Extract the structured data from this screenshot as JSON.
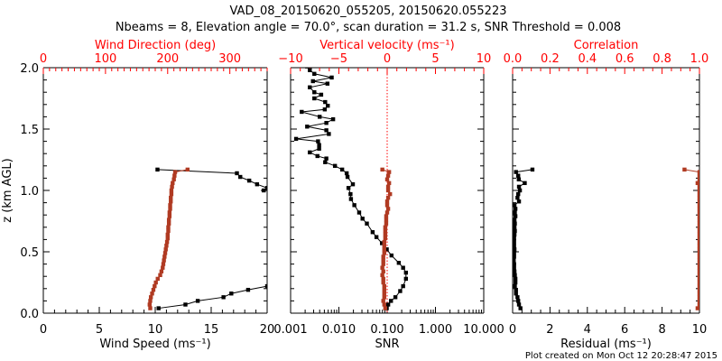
{
  "title_line1": "VAD_08_20150620_055205, 20150620.055223",
  "title_line2": "Nbeams = 8, Elevation angle = 70.0°, scan duration = 31.2 s, SNR Threshold = 0.008",
  "footer": "Plot created on Mon Oct 12 20:28:47 2015",
  "colors": {
    "axis": "#000000",
    "secondary_axis": "#ff0000",
    "secondary_series": "#b03a22",
    "primary_series": "#000000"
  },
  "chart_data": [
    {
      "type": "line",
      "panel": "wind",
      "ylabel": "z (km AGL)",
      "ylim": [
        0,
        2
      ],
      "yticks": [
        "0.0",
        "0.5",
        "1.0",
        "1.5",
        "2.0"
      ],
      "xlabel": "Wind Speed (ms⁻¹)",
      "xlim": [
        0,
        20
      ],
      "xticks": [
        "0",
        "5",
        "10",
        "15",
        "20"
      ],
      "x2label": "Wind Direction (deg)",
      "x2lim": [
        0,
        360
      ],
      "x2ticks": [
        "0",
        "100",
        "200",
        "300"
      ],
      "series": [
        {
          "name": "Wind Speed (lower)",
          "axis": "bottom",
          "z": [
            0.04,
            0.07,
            0.1,
            0.13,
            0.16,
            0.19,
            0.22
          ],
          "values": [
            10.3,
            12.7,
            13.8,
            16.1,
            16.8,
            18.3,
            20.0
          ]
        },
        {
          "name": "Wind Speed (upper)",
          "axis": "bottom",
          "z": [
            1.17,
            1.14,
            1.11,
            1.08,
            1.05,
            1.02,
            1.0
          ],
          "values": [
            10.2,
            17.3,
            17.6,
            18.4,
            19.1,
            20.0,
            19.7
          ]
        },
        {
          "name": "Wind Direction",
          "axis": "top",
          "z": [
            1.17,
            1.15,
            1.12,
            1.09,
            1.06,
            1.03,
            1.0,
            0.97,
            0.94,
            0.91,
            0.88,
            0.85,
            0.82,
            0.79,
            0.76,
            0.73,
            0.7,
            0.67,
            0.64,
            0.61,
            0.58,
            0.55,
            0.52,
            0.49,
            0.46,
            0.43,
            0.4,
            0.37,
            0.34,
            0.31,
            0.28,
            0.25,
            0.22,
            0.19,
            0.16,
            0.13,
            0.1,
            0.07,
            0.04
          ],
          "values": [
            232,
            212,
            211,
            210,
            208,
            207,
            206,
            206,
            205,
            205,
            204,
            204,
            203,
            203,
            202,
            202,
            201,
            201,
            200,
            200,
            199,
            198,
            197,
            196,
            195,
            194,
            193,
            192,
            190,
            188,
            184,
            181,
            179,
            177,
            175,
            173,
            172,
            171,
            172
          ]
        }
      ]
    },
    {
      "type": "line",
      "panel": "snr",
      "ylim": [
        0,
        2
      ],
      "xlabel": "SNR",
      "xscale": "log",
      "xlim": [
        0.001,
        10
      ],
      "xticks": [
        "0.001",
        "0.010",
        "0.100",
        "1.000",
        "10.000"
      ],
      "x2label": "Vertical velocity (ms⁻¹)",
      "x2lim": [
        -10,
        10
      ],
      "x2ticks": [
        "−10",
        "−5",
        "0",
        "5",
        "10"
      ],
      "series": [
        {
          "name": "SNR",
          "axis": "bottom",
          "z": [
            2.01,
            1.98,
            1.95,
            1.92,
            1.89,
            1.87,
            1.84,
            1.8,
            1.78,
            1.75,
            1.72,
            1.69,
            1.66,
            1.64,
            1.6,
            1.58,
            1.55,
            1.52,
            1.49,
            1.46,
            1.42,
            1.4,
            1.37,
            1.34,
            1.31,
            1.28,
            1.26,
            1.23,
            1.2,
            1.17,
            1.14,
            1.11,
            1.05,
            1.02,
            0.97,
            0.93,
            0.88,
            0.82,
            0.77,
            0.73,
            0.66,
            0.62,
            0.57,
            0.52,
            0.47,
            0.41,
            0.37,
            0.33,
            0.28,
            0.22,
            0.18,
            0.13,
            0.1,
            0.07,
            0.04
          ],
          "values": [
            0.0022,
            0.0025,
            0.0031,
            0.0071,
            0.0029,
            0.0058,
            0.0025,
            0.0031,
            0.0043,
            0.0031,
            0.0052,
            0.0059,
            0.0051,
            0.0017,
            0.004,
            0.0076,
            0.0055,
            0.0022,
            0.0055,
            0.0062,
            0.0013,
            0.0037,
            0.0039,
            0.0039,
            0.0025,
            0.0036,
            0.0055,
            0.0052,
            0.0083,
            0.0117,
            0.0145,
            0.0151,
            0.0195,
            0.0158,
            0.0174,
            0.0178,
            0.0209,
            0.0263,
            0.0309,
            0.038,
            0.05,
            0.06,
            0.078,
            0.098,
            0.123,
            0.174,
            0.214,
            0.245,
            0.245,
            0.214,
            0.186,
            0.148,
            0.12,
            0.105,
            0.098
          ]
        },
        {
          "name": "Vertical velocity",
          "axis": "top",
          "z": [
            1.17,
            1.15,
            1.12,
            1.09,
            1.06,
            1.03,
            1.0,
            0.97,
            0.94,
            0.91,
            0.88,
            0.85,
            0.82,
            0.79,
            0.76,
            0.73,
            0.7,
            0.67,
            0.64,
            0.61,
            0.58,
            0.55,
            0.52,
            0.49,
            0.46,
            0.43,
            0.4,
            0.37,
            0.34,
            0.31,
            0.28,
            0.25,
            0.22,
            0.19,
            0.16,
            0.13,
            0.1,
            0.07,
            0.04
          ],
          "values": [
            -0.5,
            0.2,
            0.1,
            0.0,
            0.2,
            0.1,
            0.1,
            0.3,
            0.1,
            0.0,
            0.0,
            0.1,
            0.0,
            -0.1,
            -0.1,
            -0.1,
            -0.2,
            -0.2,
            -0.2,
            -0.2,
            -0.3,
            -0.3,
            -0.3,
            -0.3,
            -0.4,
            -0.4,
            -0.4,
            -0.5,
            -0.4,
            -0.5,
            -0.4,
            -0.4,
            -0.3,
            -0.3,
            -0.3,
            -0.3,
            -0.4,
            -0.3,
            -0.2
          ]
        }
      ],
      "reference_line": {
        "axis": "top",
        "value": 0
      }
    },
    {
      "type": "line",
      "panel": "residual",
      "ylim": [
        0,
        2
      ],
      "xlabel": "Residual (ms⁻¹)",
      "xlim": [
        0,
        10
      ],
      "xticks": [
        "0",
        "2",
        "4",
        "6",
        "8",
        "10"
      ],
      "x2label": "Correlation",
      "x2lim": [
        0,
        1
      ],
      "x2ticks": [
        "0.0",
        "0.2",
        "0.4",
        "0.6",
        "0.8",
        "1.0"
      ],
      "series": [
        {
          "name": "Residual",
          "axis": "bottom",
          "z": [
            1.17,
            1.15,
            1.12,
            1.09,
            1.06,
            1.03,
            1.0,
            0.97,
            0.94,
            0.91,
            0.88,
            0.85,
            0.82,
            0.79,
            0.76,
            0.73,
            0.7,
            0.67,
            0.64,
            0.61,
            0.58,
            0.55,
            0.52,
            0.49,
            0.46,
            0.43,
            0.4,
            0.37,
            0.34,
            0.31,
            0.28,
            0.25,
            0.22,
            0.19,
            0.16,
            0.13,
            0.1,
            0.07,
            0.04
          ],
          "values": [
            1.06,
            0.18,
            0.3,
            0.33,
            0.65,
            0.34,
            0.39,
            0.3,
            0.26,
            0.34,
            0.1,
            0.15,
            0.12,
            0.15,
            0.1,
            0.12,
            0.1,
            0.12,
            0.1,
            0.08,
            0.08,
            0.08,
            0.1,
            0.08,
            0.08,
            0.06,
            0.08,
            0.08,
            0.1,
            0.12,
            0.15,
            0.15,
            0.12,
            0.18,
            0.18,
            0.26,
            0.3,
            0.34,
            0.42
          ]
        },
        {
          "name": "Correlation",
          "axis": "top",
          "z": [
            1.17,
            1.15,
            1.12,
            1.09,
            1.06,
            1.03,
            1.0,
            0.97,
            0.94,
            0.91,
            0.88,
            0.85,
            0.82,
            0.79,
            0.76,
            0.73,
            0.7,
            0.67,
            0.64,
            0.61,
            0.58,
            0.55,
            0.52,
            0.49,
            0.46,
            0.43,
            0.4,
            0.37,
            0.34,
            0.31,
            0.28,
            0.25,
            0.22,
            0.19,
            0.16,
            0.13,
            0.1,
            0.07,
            0.04
          ],
          "values": [
            0.92,
            1.0,
            1.0,
            1.0,
            0.99,
            1.0,
            1.0,
            1.0,
            1.0,
            1.0,
            1.0,
            1.0,
            1.0,
            1.0,
            1.0,
            1.0,
            1.0,
            1.0,
            1.0,
            1.0,
            1.0,
            1.0,
            1.0,
            1.0,
            1.0,
            1.0,
            1.0,
            1.0,
            1.0,
            1.0,
            1.0,
            1.0,
            1.0,
            1.0,
            1.0,
            1.0,
            1.0,
            1.0,
            0.99
          ]
        }
      ]
    }
  ]
}
